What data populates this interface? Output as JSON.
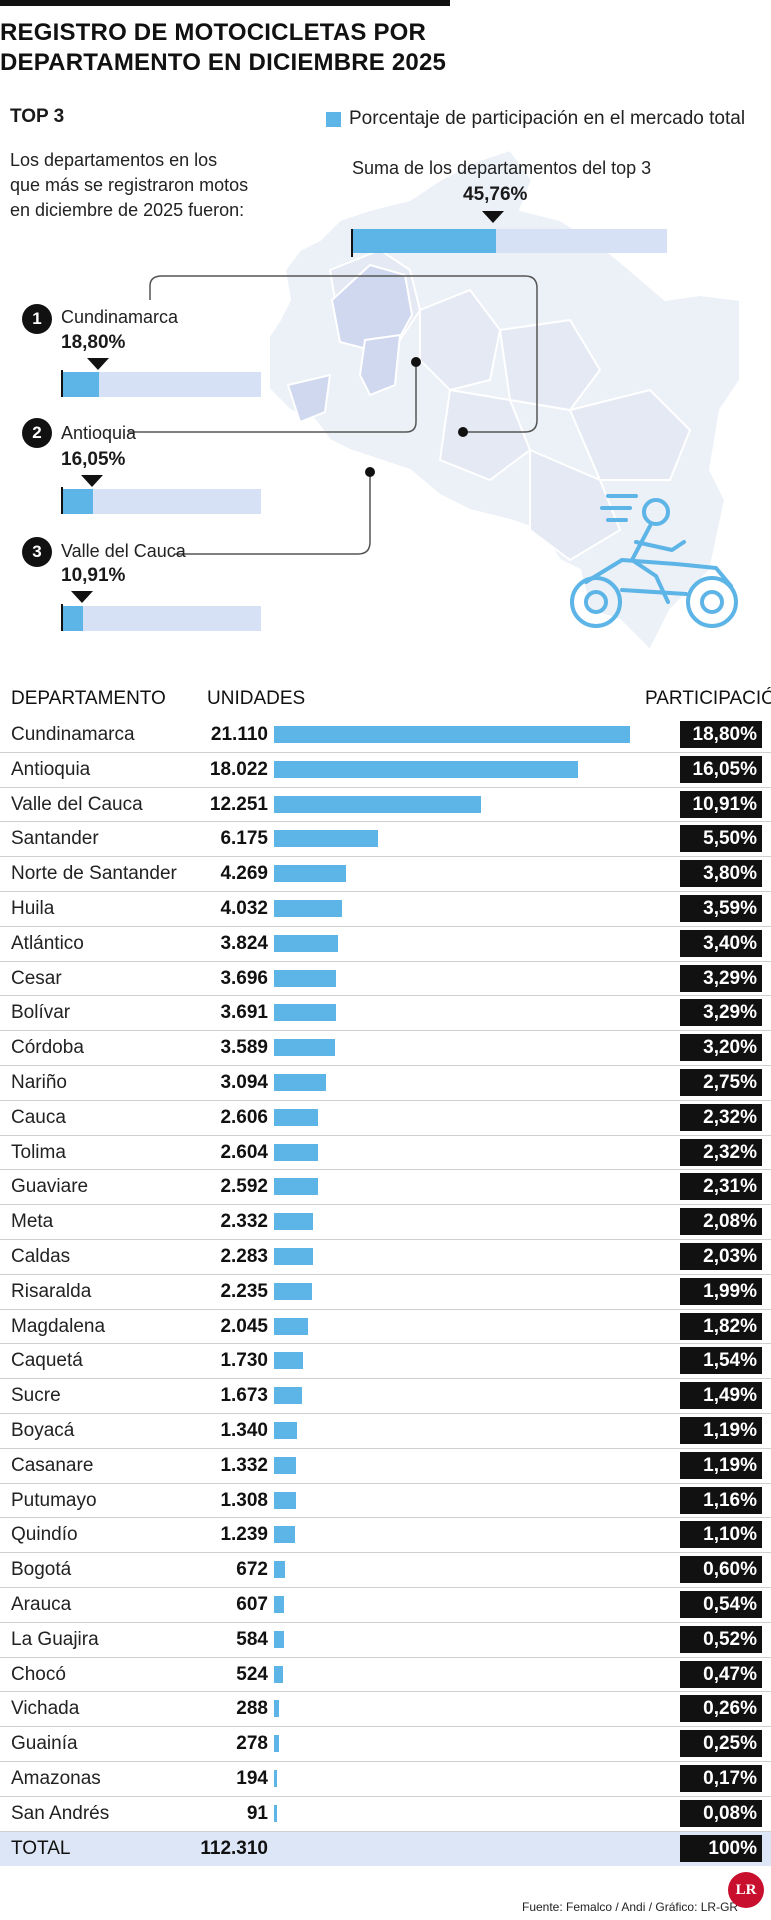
{
  "title": "REGISTRO DE MOTOCICLETAS POR DEPARTAMENTO EN DICIEMBRE 2025",
  "top3": {
    "heading": "TOP 3",
    "description": "Los departamentos en los que más se registraron motos en diciembre de 2025 fueron:",
    "legend": "Porcentaje de participación en el mercado total",
    "sum_label": "Suma de los departamentos del top 3",
    "sum_value": "45,76%",
    "sum_fraction": 0.4576,
    "items": [
      {
        "rank": "1",
        "name": "Cundinamarca",
        "pct": "18,80%",
        "fraction": 0.188
      },
      {
        "rank": "2",
        "name": "Antioquia",
        "pct": "16,05%",
        "fraction": 0.1605
      },
      {
        "rank": "3",
        "name": "Valle del Cauca",
        "pct": "10,91%",
        "fraction": 0.1091
      }
    ]
  },
  "colors": {
    "accent": "#5db4e6",
    "track": "#d6e1f5",
    "dark": "#111111",
    "logo": "#c8102e"
  },
  "icons": {
    "map": "colombia-map-icon",
    "motorcycle": "motorcycle-rider-icon"
  },
  "table": {
    "headers": {
      "department": "DEPARTAMENTO",
      "units": "UNIDADES",
      "share": "PARTICIPACIÓN"
    },
    "total": {
      "department": "TOTAL",
      "units": "112.310",
      "share": "100%"
    }
  },
  "chart_data": {
    "type": "bar",
    "categories": [
      "Cundinamarca",
      "Antioquia",
      "Valle del Cauca",
      "Santander",
      "Norte de Santander",
      "Huila",
      "Atlántico",
      "Cesar",
      "Bolívar",
      "Córdoba",
      "Nariño",
      "Cauca",
      "Tolima",
      "Guaviare",
      "Meta",
      "Caldas",
      "Risaralda",
      "Magdalena",
      "Caquetá",
      "Sucre",
      "Boyacá",
      "Casanare",
      "Putumayo",
      "Quindío",
      "Bogotá",
      "Arauca",
      "La Guajira",
      "Chocó",
      "Vichada",
      "Guainía",
      "Amazonas",
      "San Andrés"
    ],
    "values": [
      21110,
      18022,
      12251,
      6175,
      4269,
      4032,
      3824,
      3696,
      3691,
      3589,
      3094,
      2606,
      2604,
      2592,
      2332,
      2283,
      2235,
      2045,
      1730,
      1673,
      1340,
      1332,
      1308,
      1239,
      672,
      607,
      584,
      524,
      288,
      278,
      194,
      91
    ],
    "value_labels": [
      "21.110",
      "18.022",
      "12.251",
      "6.175",
      "4.269",
      "4.032",
      "3.824",
      "3.696",
      "3.691",
      "3.589",
      "3.094",
      "2.606",
      "2.604",
      "2.592",
      "2.332",
      "2.283",
      "2.235",
      "2.045",
      "1.730",
      "1.673",
      "1.340",
      "1.332",
      "1.308",
      "1.239",
      "672",
      "607",
      "584",
      "524",
      "288",
      "278",
      "194",
      "91"
    ],
    "shares": [
      "18,80%",
      "16,05%",
      "10,91%",
      "5,50%",
      "3,80%",
      "3,59%",
      "3,40%",
      "3,29%",
      "3,29%",
      "3,20%",
      "2,75%",
      "2,32%",
      "2,32%",
      "2,31%",
      "2,08%",
      "2,03%",
      "1,99%",
      "1,82%",
      "1,54%",
      "1,49%",
      "1,19%",
      "1,19%",
      "1,16%",
      "1,10%",
      "0,60%",
      "0,54%",
      "0,52%",
      "0,47%",
      "0,26%",
      "0,25%",
      "0,17%",
      "0,08%"
    ],
    "orientation": "horizontal",
    "xlim": [
      0,
      21110
    ]
  },
  "source": "Fuente: Femalco / Andi / Gráfico: LR-GR",
  "logo_text": "LR"
}
